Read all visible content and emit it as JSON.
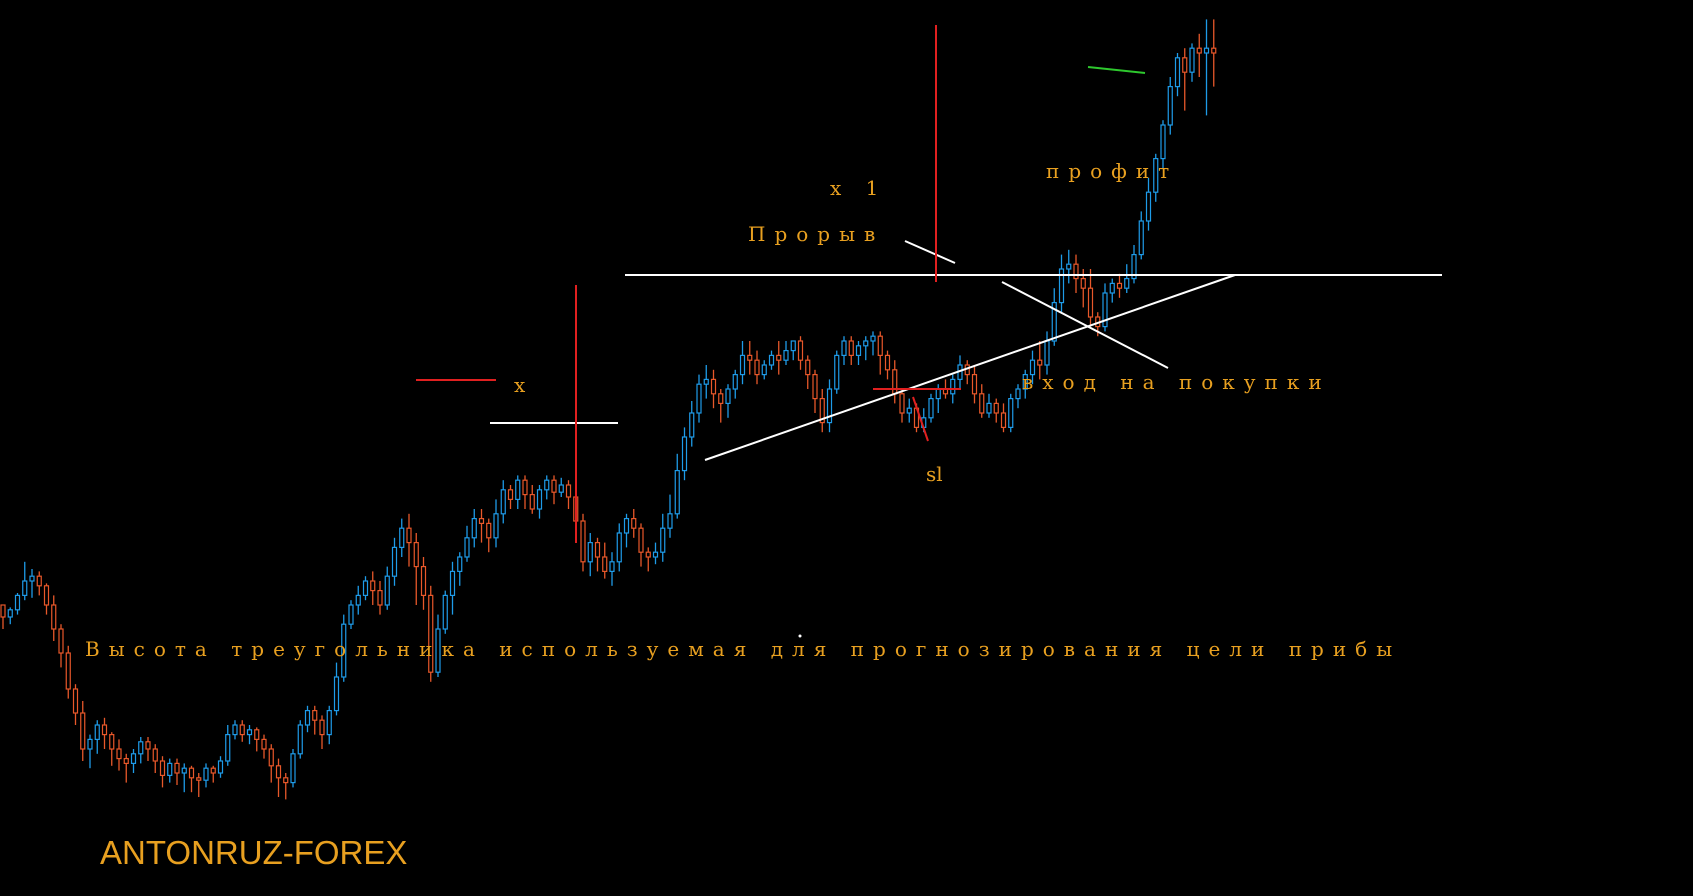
{
  "chart_data": {
    "type": "candlestick",
    "title": "",
    "xlabel": "",
    "ylabel": "",
    "grid": false,
    "colors": {
      "background": "#000000",
      "bull": "#1E9BE8",
      "bear": "#E8582A",
      "annotation_text": "#E8A020",
      "level_line": "#FFFFFF",
      "marker_line": "#E02020",
      "target_line": "#2EC82E"
    },
    "candles": [
      [
        100,
        95,
        100,
        90
      ],
      [
        95,
        98,
        99,
        92
      ],
      [
        98,
        104,
        105,
        96
      ],
      [
        104,
        110,
        118,
        102
      ],
      [
        110,
        112,
        115,
        103
      ],
      [
        112,
        108,
        114,
        104
      ],
      [
        108,
        100,
        109,
        96
      ],
      [
        100,
        90,
        104,
        85
      ],
      [
        90,
        80,
        92,
        74
      ],
      [
        80,
        65,
        83,
        61
      ],
      [
        65,
        55,
        67,
        50
      ],
      [
        55,
        40,
        60,
        35
      ],
      [
        40,
        44,
        46,
        32
      ],
      [
        44,
        50,
        52,
        38
      ],
      [
        50,
        46,
        53,
        40
      ],
      [
        46,
        40,
        47,
        33
      ],
      [
        40,
        36,
        44,
        31
      ],
      [
        36,
        34,
        38,
        26
      ],
      [
        34,
        38,
        40,
        30
      ],
      [
        38,
        43,
        45,
        34
      ],
      [
        43,
        40,
        45,
        35
      ],
      [
        40,
        35,
        42,
        30
      ],
      [
        35,
        29,
        37,
        24
      ],
      [
        29,
        34,
        36,
        26
      ],
      [
        34,
        30,
        36,
        25
      ],
      [
        30,
        32,
        34,
        22
      ],
      [
        32,
        28,
        33,
        22
      ],
      [
        28,
        27,
        30,
        20
      ],
      [
        27,
        32,
        34,
        24
      ],
      [
        32,
        30,
        33,
        26
      ],
      [
        30,
        35,
        37,
        28
      ],
      [
        35,
        46,
        50,
        33
      ],
      [
        46,
        50,
        52,
        44
      ],
      [
        50,
        46,
        52,
        43
      ],
      [
        46,
        48,
        50,
        42
      ],
      [
        48,
        44,
        49,
        39
      ],
      [
        44,
        40,
        46,
        36
      ],
      [
        40,
        33,
        42,
        26
      ],
      [
        33,
        28,
        36,
        20
      ],
      [
        28,
        26,
        30,
        19
      ],
      [
        26,
        38,
        40,
        24
      ],
      [
        38,
        50,
        52,
        36
      ],
      [
        50,
        56,
        58,
        47
      ],
      [
        56,
        52,
        58,
        46
      ],
      [
        52,
        46,
        54,
        40
      ],
      [
        46,
        56,
        58,
        42
      ],
      [
        56,
        70,
        76,
        54
      ],
      [
        70,
        92,
        96,
        68
      ],
      [
        92,
        100,
        102,
        90
      ],
      [
        100,
        104,
        108,
        96
      ],
      [
        104,
        110,
        112,
        102
      ],
      [
        110,
        106,
        114,
        100
      ],
      [
        106,
        100,
        110,
        96
      ],
      [
        100,
        112,
        116,
        98
      ],
      [
        112,
        124,
        128,
        108
      ],
      [
        124,
        132,
        136,
        120
      ],
      [
        132,
        126,
        138,
        116
      ],
      [
        126,
        116,
        130,
        100
      ],
      [
        116,
        104,
        120,
        98
      ],
      [
        104,
        72,
        108,
        68
      ],
      [
        72,
        90,
        96,
        70
      ],
      [
        90,
        104,
        106,
        88
      ],
      [
        104,
        114,
        118,
        96
      ],
      [
        114,
        120,
        122,
        108
      ],
      [
        120,
        128,
        133,
        118
      ],
      [
        128,
        136,
        140,
        124
      ],
      [
        136,
        134,
        140,
        126
      ],
      [
        134,
        128,
        136,
        122
      ],
      [
        128,
        138,
        144,
        124
      ],
      [
        138,
        148,
        152,
        134
      ],
      [
        148,
        144,
        150,
        140
      ],
      [
        144,
        152,
        154,
        140
      ],
      [
        152,
        146,
        154,
        140
      ],
      [
        146,
        140,
        150,
        138
      ],
      [
        140,
        148,
        150,
        136
      ],
      [
        148,
        152,
        154,
        144
      ],
      [
        152,
        147,
        154,
        142
      ],
      [
        147,
        150,
        153,
        145
      ],
      [
        150,
        145,
        152,
        140
      ],
      [
        145,
        135,
        146,
        128
      ],
      [
        135,
        118,
        138,
        114
      ],
      [
        118,
        126,
        130,
        112
      ],
      [
        126,
        120,
        128,
        114
      ],
      [
        120,
        114,
        126,
        111
      ],
      [
        114,
        118,
        122,
        108
      ],
      [
        118,
        130,
        134,
        114
      ],
      [
        130,
        136,
        138,
        124
      ],
      [
        136,
        132,
        140,
        128
      ],
      [
        132,
        122,
        134,
        116
      ],
      [
        122,
        120,
        124,
        114
      ],
      [
        120,
        122,
        126,
        117
      ],
      [
        122,
        132,
        138,
        118
      ],
      [
        132,
        138,
        146,
        128
      ],
      [
        138,
        156,
        163,
        136
      ],
      [
        156,
        170,
        174,
        152
      ],
      [
        170,
        180,
        185,
        166
      ],
      [
        180,
        192,
        196,
        176
      ],
      [
        192,
        194,
        200,
        186
      ],
      [
        194,
        188,
        198,
        182
      ],
      [
        188,
        184,
        190,
        176
      ],
      [
        184,
        190,
        192,
        178
      ],
      [
        190,
        196,
        198,
        186
      ],
      [
        196,
        204,
        210,
        192
      ],
      [
        204,
        202,
        210,
        196
      ],
      [
        202,
        196,
        206,
        192
      ],
      [
        196,
        200,
        202,
        194
      ],
      [
        200,
        204,
        206,
        198
      ],
      [
        204,
        202,
        210,
        196
      ],
      [
        202,
        206,
        210,
        200
      ],
      [
        206,
        210,
        210,
        202
      ],
      [
        210,
        202,
        212,
        198
      ],
      [
        202,
        196,
        204,
        190
      ],
      [
        196,
        186,
        198,
        180
      ],
      [
        186,
        176,
        190,
        172
      ],
      [
        176,
        190,
        194,
        172
      ],
      [
        190,
        204,
        206,
        188
      ],
      [
        204,
        210,
        212,
        200
      ],
      [
        210,
        204,
        212,
        200
      ],
      [
        204,
        208,
        210,
        200
      ],
      [
        208,
        210,
        212,
        202
      ],
      [
        210,
        212,
        214,
        204
      ],
      [
        212,
        204,
        214,
        196
      ],
      [
        204,
        198,
        206,
        194
      ],
      [
        198,
        188,
        202,
        184
      ],
      [
        188,
        180,
        190,
        176
      ],
      [
        180,
        182,
        186,
        176
      ],
      [
        182,
        174,
        184,
        172
      ],
      [
        174,
        178,
        182,
        172
      ],
      [
        178,
        186,
        188,
        176
      ],
      [
        186,
        190,
        192,
        180
      ],
      [
        190,
        188,
        194,
        186
      ],
      [
        188,
        194,
        196,
        184
      ],
      [
        194,
        200,
        204,
        190
      ],
      [
        200,
        196,
        202,
        192
      ],
      [
        196,
        188,
        200,
        184
      ],
      [
        188,
        180,
        192,
        178
      ],
      [
        180,
        184,
        188,
        178
      ],
      [
        184,
        180,
        186,
        176
      ],
      [
        180,
        174,
        184,
        172
      ],
      [
        174,
        186,
        188,
        172
      ],
      [
        186,
        190,
        192,
        182
      ],
      [
        190,
        196,
        198,
        186
      ],
      [
        196,
        202,
        206,
        192
      ],
      [
        202,
        200,
        210,
        194
      ],
      [
        200,
        210,
        214,
        196
      ],
      [
        210,
        226,
        232,
        208
      ],
      [
        226,
        240,
        246,
        222
      ],
      [
        240,
        242,
        248,
        234
      ],
      [
        242,
        236,
        246,
        230
      ],
      [
        236,
        232,
        240,
        224
      ],
      [
        232,
        220,
        240,
        216
      ],
      [
        220,
        216,
        222,
        212
      ],
      [
        216,
        230,
        234,
        214
      ],
      [
        230,
        234,
        236,
        226
      ],
      [
        234,
        232,
        238,
        228
      ],
      [
        232,
        236,
        242,
        230
      ],
      [
        236,
        246,
        250,
        234
      ],
      [
        246,
        260,
        264,
        244
      ],
      [
        260,
        272,
        278,
        256
      ],
      [
        272,
        286,
        288,
        268
      ],
      [
        286,
        300,
        302,
        282
      ],
      [
        300,
        316,
        320,
        296
      ],
      [
        316,
        328,
        330,
        312
      ],
      [
        328,
        322,
        332,
        306
      ],
      [
        322,
        332,
        334,
        318
      ],
      [
        332,
        330,
        338,
        320
      ],
      [
        330,
        332,
        344,
        304
      ],
      [
        332,
        330,
        344,
        316
      ]
    ],
    "levels": [
      {
        "kind": "resistance",
        "price": 210
      },
      {
        "kind": "local_high",
        "price": 136
      },
      {
        "kind": "support_trendline",
        "from_candle": 78,
        "from_price": 122,
        "to_candle": 158,
        "to_price": 210
      }
    ],
    "annotations": {
      "x": "х",
      "x1": "х 1",
      "breakout": "Прорыв",
      "entry": "вход на покупки",
      "stop_loss": "sl",
      "profit": "профит",
      "caption": "Высота треугольника используемая для прогнозирования цели прибы"
    }
  },
  "watermark": "ANTONRUZ-FOREX"
}
